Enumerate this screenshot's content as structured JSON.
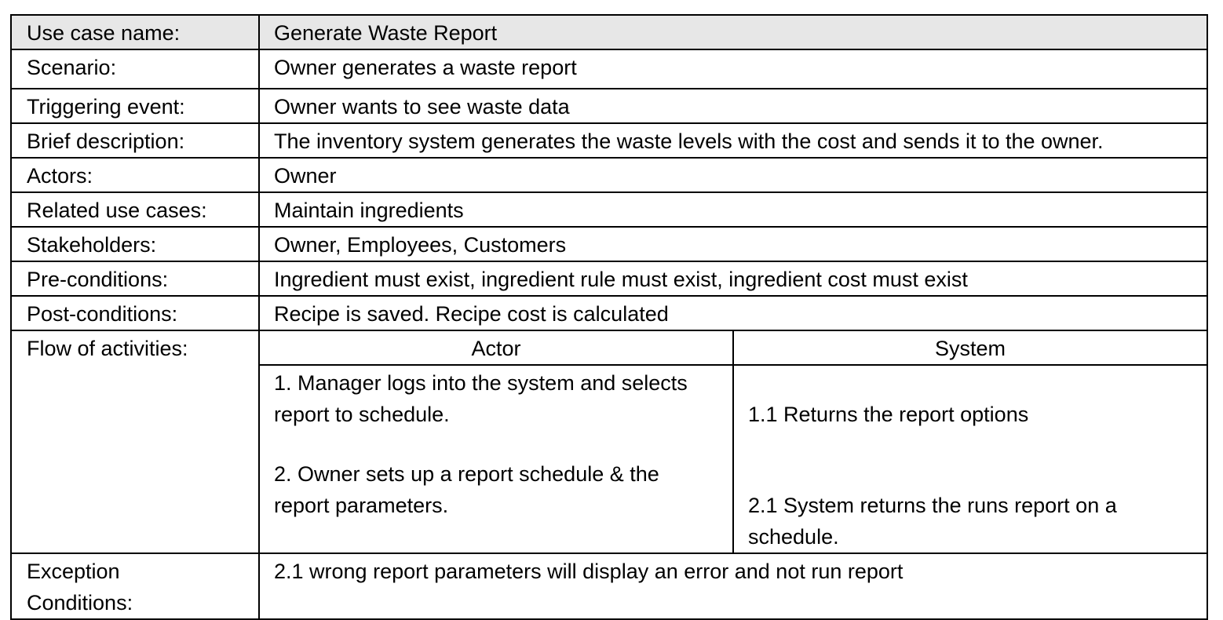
{
  "use_case": {
    "name_label": "Use case name:",
    "name_value": "Generate Waste Report",
    "rows": [
      {
        "label": "Scenario:",
        "value": "Owner generates a waste report"
      },
      {
        "label": "Triggering event:",
        "value": "Owner wants to see waste data"
      },
      {
        "label": "Brief description:",
        "value": "The inventory system generates the waste levels with the cost and sends it to the owner."
      },
      {
        "label": "Actors:",
        "value": "Owner"
      },
      {
        "label": "Related use cases:",
        "value": "Maintain ingredients"
      },
      {
        "label": "Stakeholders:",
        "value": "Owner, Employees, Customers"
      },
      {
        "label": "Pre-conditions:",
        "value": "Ingredient must exist, ingredient rule must exist, ingredient cost must exist"
      },
      {
        "label": "Post-conditions:",
        "value": "Recipe is saved. Recipe cost is calculated"
      }
    ],
    "flow": {
      "label": "Flow of activities:",
      "actor_header": "Actor",
      "system_header": "System",
      "actor_steps": [
        {
          "line1": "1. Manager logs into the system and selects",
          "line2": "report to schedule."
        },
        {
          "line1": "2. Owner sets up a report schedule & the",
          "line2": "report parameters."
        }
      ],
      "system_steps": [
        {
          "line1": "1.1  Returns the report options"
        },
        {
          "line1": "2.1 System returns the runs report on a",
          "line2": "schedule."
        }
      ]
    },
    "exception": {
      "label_line1": "Exception",
      "label_line2": "Conditions:",
      "value": "2.1 wrong report parameters will display an error and not run report"
    }
  }
}
